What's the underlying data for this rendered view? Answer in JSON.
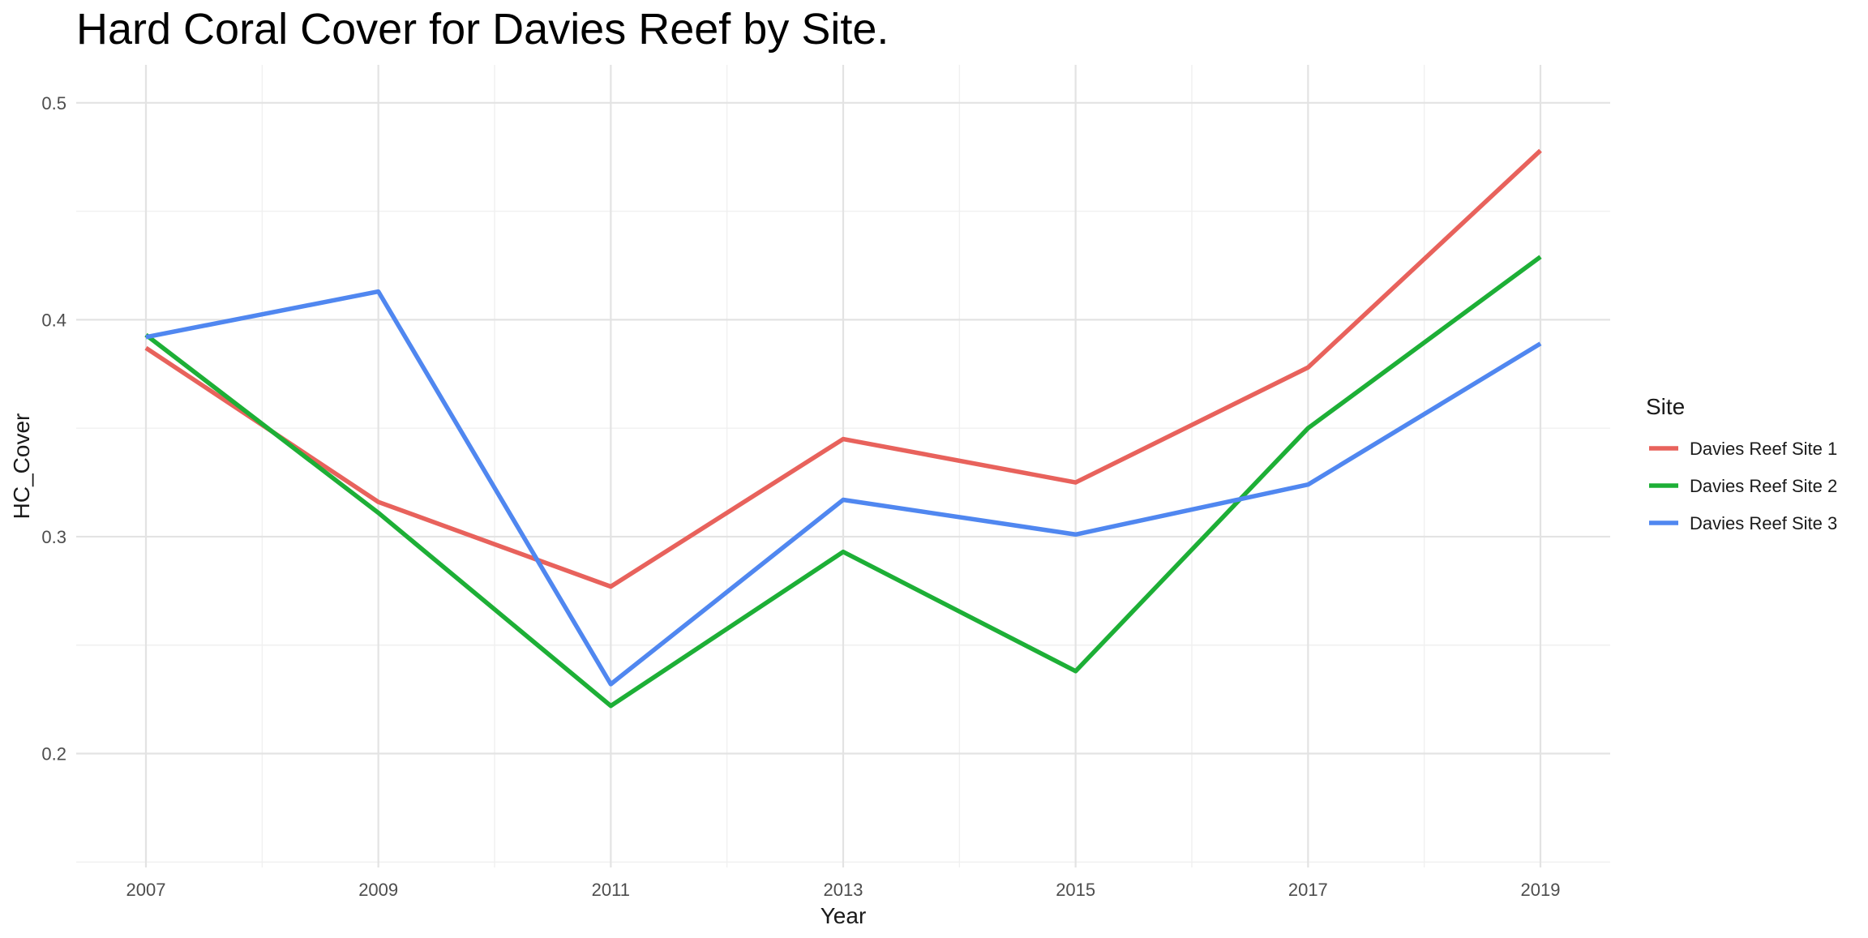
{
  "chart_data": {
    "type": "line",
    "title": "Hard Coral Cover for Davies Reef by Site.",
    "xlabel": "Year",
    "ylabel": "HC_Cover",
    "xlim": [
      2006.4,
      2019.6
    ],
    "ylim": [
      0.1475,
      0.5175
    ],
    "x_ticks": [
      2007,
      2009,
      2011,
      2013,
      2015,
      2017,
      2019
    ],
    "x_minor_ticks": [
      2008,
      2010,
      2012,
      2014,
      2016,
      2018
    ],
    "y_ticks": [
      0.2,
      0.3,
      0.4,
      0.5
    ],
    "y_tick_labels": [
      "0.2",
      "0.3",
      "0.4",
      "0.5"
    ],
    "y_minor_ticks": [
      0.15,
      0.25,
      0.35,
      0.45
    ],
    "grid": true,
    "legend": {
      "title": "Site",
      "position": "right"
    },
    "x": [
      2007,
      2009,
      2011,
      2013,
      2015,
      2017,
      2019
    ],
    "series": [
      {
        "name": "Davies Reef Site 1",
        "color": "#E8625C",
        "values": [
          0.387,
          0.316,
          0.277,
          0.345,
          0.325,
          0.378,
          0.478
        ]
      },
      {
        "name": "Davies Reef Site 2",
        "color": "#1DAF36",
        "values": [
          0.393,
          0.311,
          0.222,
          0.293,
          0.238,
          0.35,
          0.429
        ]
      },
      {
        "name": "Davies Reef Site 3",
        "color": "#5087F0",
        "values": [
          0.392,
          0.413,
          0.232,
          0.317,
          0.301,
          0.324,
          0.389
        ]
      }
    ]
  }
}
